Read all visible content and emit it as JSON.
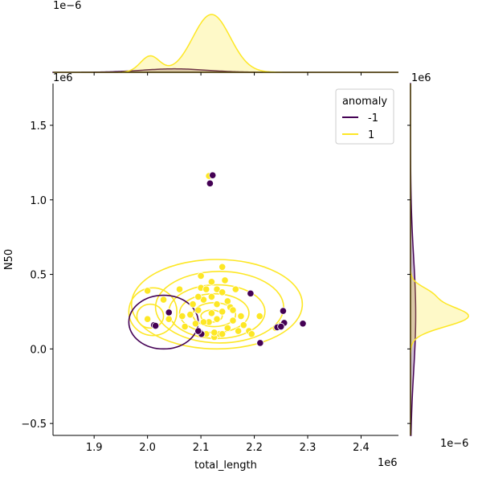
{
  "chart_data": {
    "type": "scatter",
    "title": "",
    "xlabel": "total_length",
    "ylabel": "N50",
    "x_scale_label": "1e6",
    "y_scale_label": "1e6",
    "top_marginal_scale_label": "1e−6",
    "right_marginal_scale_label": "1e−6",
    "top_right_scale_label": "1e6",
    "xlim": [
      1.823,
      2.47
    ],
    "ylim": [
      -0.58,
      1.78
    ],
    "xticks": [
      1.9,
      2.0,
      2.1,
      2.2,
      2.3,
      2.4
    ],
    "xtick_labels": [
      "1.9",
      "2.0",
      "2.1",
      "2.2",
      "2.3",
      "2.4"
    ],
    "yticks": [
      -0.5,
      0.0,
      0.5,
      1.0,
      1.5
    ],
    "ytick_labels": [
      "−0.5",
      "0.0",
      "0.5",
      "1.0",
      "1.5"
    ],
    "grid": false,
    "legend": {
      "title": "anomaly",
      "placement": "top-right"
    },
    "series": [
      {
        "name": "-1",
        "color": "#440154",
        "points": [
          [
            2.122,
            1.165
          ],
          [
            2.117,
            1.11
          ],
          [
            2.193,
            0.372
          ],
          [
            2.254,
            0.255
          ],
          [
            2.04,
            0.245
          ],
          [
            2.012,
            0.16
          ],
          [
            2.015,
            0.155
          ],
          [
            2.099,
            0.11
          ],
          [
            2.101,
            0.1
          ],
          [
            2.211,
            0.04
          ],
          [
            2.256,
            0.175
          ],
          [
            2.291,
            0.17
          ],
          [
            2.243,
            0.145
          ],
          [
            2.25,
            0.15
          ],
          [
            2.095,
            0.12
          ]
        ]
      },
      {
        "name": "1",
        "color": "#fde725",
        "points": [
          [
            2.115,
            1.16
          ],
          [
            2.0,
            0.39
          ],
          [
            2.03,
            0.33
          ],
          [
            2.04,
            0.2
          ],
          [
            2.0,
            0.2
          ],
          [
            2.06,
            0.4
          ],
          [
            2.065,
            0.22
          ],
          [
            2.07,
            0.15
          ],
          [
            2.08,
            0.23
          ],
          [
            2.085,
            0.3
          ],
          [
            2.09,
            0.17
          ],
          [
            2.095,
            0.26
          ],
          [
            2.1,
            0.41
          ],
          [
            2.1,
            0.49
          ],
          [
            2.105,
            0.33
          ],
          [
            2.11,
            0.4
          ],
          [
            2.11,
            0.1
          ],
          [
            2.115,
            0.18
          ],
          [
            2.12,
            0.35
          ],
          [
            2.12,
            0.24
          ],
          [
            2.125,
            0.08
          ],
          [
            2.13,
            0.4
          ],
          [
            2.13,
            0.3
          ],
          [
            2.13,
            0.2
          ],
          [
            2.135,
            0.1
          ],
          [
            2.14,
            0.55
          ],
          [
            2.14,
            0.38
          ],
          [
            2.14,
            0.25
          ],
          [
            2.145,
            0.46
          ],
          [
            2.15,
            0.32
          ],
          [
            2.15,
            0.14
          ],
          [
            2.155,
            0.28
          ],
          [
            2.16,
            0.19
          ],
          [
            2.165,
            0.4
          ],
          [
            2.17,
            0.12
          ],
          [
            2.175,
            0.22
          ],
          [
            2.18,
            0.16
          ],
          [
            2.19,
            0.12
          ],
          [
            2.195,
            0.1
          ],
          [
            2.21,
            0.22
          ],
          [
            2.24,
            0.14
          ],
          [
            2.25,
            0.16
          ],
          [
            2.105,
            0.18
          ],
          [
            2.095,
            0.35
          ],
          [
            2.125,
            0.11
          ],
          [
            2.16,
            0.26
          ],
          [
            2.14,
            0.1
          ],
          [
            2.12,
            0.45
          ]
        ]
      }
    ],
    "kde_x": {
      "minus1": {
        "mu": 2.05,
        "sigma": 0.06,
        "peak": 0.06
      },
      "plus1": {
        "components": [
          {
            "mu": 2.005,
            "sigma": 0.018,
            "peak": 0.28
          },
          {
            "mu": 2.12,
            "sigma": 0.035,
            "peak": 1.0
          }
        ]
      }
    },
    "kde_y": {
      "minus1": {
        "mu": 0.23,
        "sigma": 0.38,
        "peak": 0.09
      },
      "plus1": {
        "components": [
          {
            "mu": 0.22,
            "sigma": 0.07,
            "peak": 1.0
          },
          {
            "mu": 0.37,
            "sigma": 0.05,
            "peak": 0.3
          }
        ]
      }
    }
  }
}
